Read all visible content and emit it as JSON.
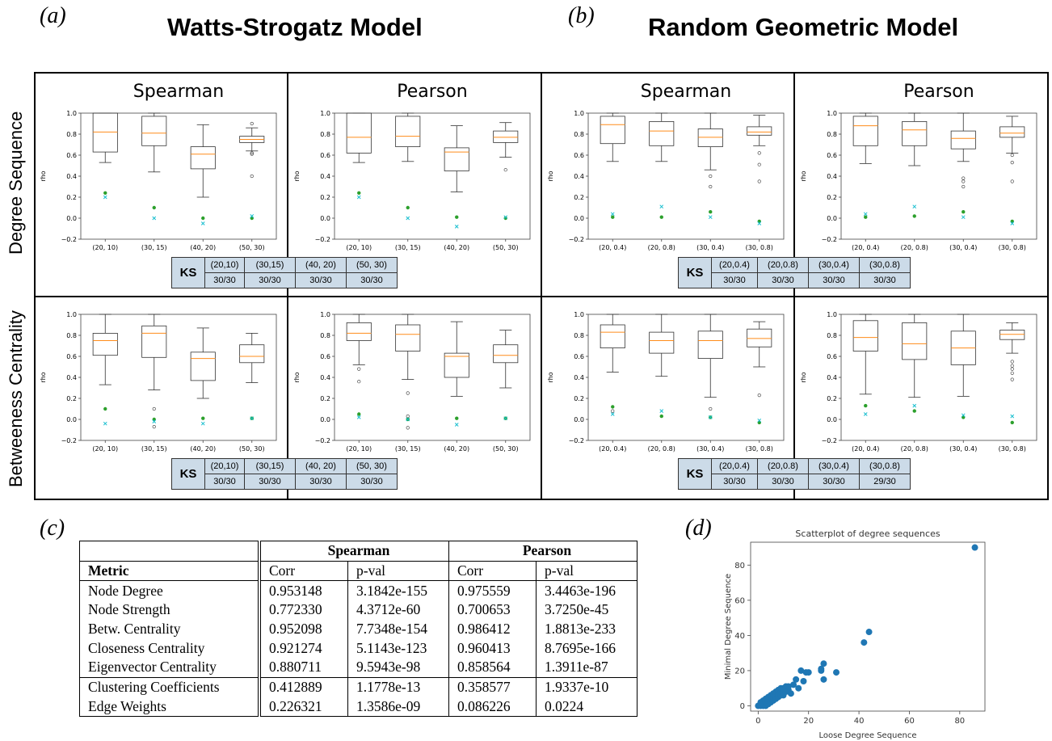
{
  "panel_labels": {
    "a": "(a)",
    "b": "(b)",
    "c": "(c)",
    "d": "(d)"
  },
  "titles": {
    "ws": "Watts-Strogatz Model",
    "rg": "Random Geometric Model"
  },
  "row_labels": {
    "degree": "Degree Sequence",
    "betweenness": "Betweeness Centrality"
  },
  "ks": {
    "label": "KS",
    "ws_deg": {
      "params": [
        "(20,10)",
        "(30,15)",
        "(40, 20)",
        "(50, 30)"
      ],
      "results": [
        "30/30",
        "30/30",
        "30/30",
        "30/30"
      ]
    },
    "rg_deg": {
      "params": [
        "(20,0.4)",
        "(20,0.8)",
        "(30,0.4)",
        "(30,0.8)"
      ],
      "results": [
        "30/30",
        "30/30",
        "30/30",
        "30/30"
      ]
    },
    "ws_bet": {
      "params": [
        "(20,10)",
        "(30,15)",
        "(40, 20)",
        "(50, 30)"
      ],
      "results": [
        "30/30",
        "30/30",
        "30/30",
        "30/30"
      ]
    },
    "rg_bet": {
      "params": [
        "(20,0.4)",
        "(20,0.8)",
        "(30,0.4)",
        "(30,0.8)"
      ],
      "results": [
        "30/30",
        "30/30",
        "30/30",
        "29/30"
      ]
    }
  },
  "table": {
    "group_headers": [
      "Spearman",
      "Pearson"
    ],
    "col_headers": [
      "Metric",
      "Corr",
      "p-val",
      "Corr",
      "p-val"
    ],
    "rows": [
      [
        "Node Degree",
        "0.953148",
        "3.1842e-155",
        "0.975559",
        "3.4463e-196"
      ],
      [
        "Node Strength",
        "0.772330",
        "4.3712e-60",
        "0.700653",
        "3.7250e-45"
      ],
      [
        "Betw. Centrality",
        "0.952098",
        "7.7348e-154",
        "0.986412",
        "1.8813e-233"
      ],
      [
        "Closeness Centrality",
        "0.921274",
        "5.1143e-123",
        "0.960413",
        "8.7695e-166"
      ],
      [
        "Eigenvector Centrality",
        "0.880711",
        "9.5943e-98",
        "0.858564",
        "1.3911e-87"
      ],
      [
        "Clustering Coefficients",
        "0.412889",
        "1.1778e-13",
        "0.358577",
        "1.9337e-10"
      ],
      [
        "Edge Weights",
        "0.226321",
        "1.3586e-09",
        "0.086226",
        "0.0224"
      ]
    ]
  },
  "colors": {
    "median": "#ff8c1a",
    "green_marker": "#2ca02c",
    "cyan_marker": "#17becf",
    "scatter": "#1f77b4",
    "ks_fill": "#ccdbe8"
  },
  "chart_data": [
    {
      "type": "box",
      "title": "Spearman",
      "model": "ws",
      "row": "degree",
      "ylabel": "rho",
      "ylim": [
        -0.2,
        1.0
      ],
      "yticks": [
        "−0.2",
        "0.0",
        "0.2",
        "0.4",
        "0.6",
        "0.8",
        "1.0"
      ],
      "categories": [
        "(20, 10)",
        "(30, 15)",
        "(40, 20)",
        "(50, 30)"
      ],
      "boxes": [
        {
          "min": 0.53,
          "q1": 0.63,
          "med": 0.82,
          "q3": 1.0,
          "max": 1.0,
          "out": []
        },
        {
          "min": 0.44,
          "q1": 0.69,
          "med": 0.81,
          "q3": 0.97,
          "max": 1.0,
          "out": []
        },
        {
          "min": 0.2,
          "q1": 0.47,
          "med": 0.61,
          "q3": 0.68,
          "max": 0.89,
          "out": []
        },
        {
          "min": 0.64,
          "q1": 0.72,
          "med": 0.75,
          "q3": 0.78,
          "max": 0.86,
          "out": [
            0.9,
            0.62,
            0.61,
            0.4
          ]
        }
      ],
      "green": [
        0.24,
        0.1,
        0.0,
        0.0
      ],
      "cyan": [
        0.2,
        0.0,
        -0.05,
        0.02
      ]
    },
    {
      "type": "box",
      "title": "Pearson",
      "model": "ws",
      "row": "degree",
      "ylabel": "rho",
      "ylim": [
        -0.2,
        1.0
      ],
      "yticks": [
        "−0.2",
        "0.0",
        "0.2",
        "0.4",
        "0.6",
        "0.8",
        "1.0"
      ],
      "categories": [
        "(20, 10)",
        "(30, 15)",
        "(40, 20)",
        "(50, 30)"
      ],
      "boxes": [
        {
          "min": 0.53,
          "q1": 0.62,
          "med": 0.77,
          "q3": 1.0,
          "max": 1.0,
          "out": []
        },
        {
          "min": 0.54,
          "q1": 0.68,
          "med": 0.78,
          "q3": 0.97,
          "max": 1.0,
          "out": []
        },
        {
          "min": 0.25,
          "q1": 0.45,
          "med": 0.63,
          "q3": 0.67,
          "max": 0.88,
          "out": []
        },
        {
          "min": 0.58,
          "q1": 0.72,
          "med": 0.77,
          "q3": 0.83,
          "max": 0.91,
          "out": [
            0.46
          ]
        }
      ],
      "green": [
        0.24,
        0.1,
        0.01,
        0.0
      ],
      "cyan": [
        0.2,
        0.0,
        -0.08,
        0.01
      ]
    },
    {
      "type": "box",
      "title": "Spearman",
      "model": "rg",
      "row": "degree",
      "ylabel": "rho",
      "ylim": [
        -0.2,
        1.0
      ],
      "yticks": [
        "−0.2",
        "0.0",
        "0.2",
        "0.4",
        "0.6",
        "0.8",
        "1.0"
      ],
      "categories": [
        "(20, 0.4)",
        "(20, 0.8)",
        "(30, 0.4)",
        "(30, 0.8)"
      ],
      "boxes": [
        {
          "min": 0.54,
          "q1": 0.71,
          "med": 0.89,
          "q3": 0.97,
          "max": 1.0,
          "out": []
        },
        {
          "min": 0.54,
          "q1": 0.69,
          "med": 0.83,
          "q3": 0.92,
          "max": 1.0,
          "out": []
        },
        {
          "min": 0.46,
          "q1": 0.68,
          "med": 0.77,
          "q3": 0.85,
          "max": 1.0,
          "out": [
            0.4,
            0.3
          ]
        },
        {
          "min": 0.69,
          "q1": 0.79,
          "med": 0.82,
          "q3": 0.87,
          "max": 0.98,
          "out": [
            0.62,
            0.51,
            0.35
          ]
        }
      ],
      "green": [
        0.01,
        0.01,
        0.06,
        -0.03
      ],
      "cyan": [
        0.04,
        0.11,
        0.01,
        -0.05
      ]
    },
    {
      "type": "box",
      "title": "Pearson",
      "model": "rg",
      "row": "degree",
      "ylabel": "rho",
      "ylim": [
        -0.2,
        1.0
      ],
      "yticks": [
        "−0.2",
        "0.0",
        "0.2",
        "0.4",
        "0.6",
        "0.8",
        "1.0"
      ],
      "categories": [
        "(20, 0.4)",
        "(20, 0.8)",
        "(30, 0.4)",
        "(30, 0.8)"
      ],
      "boxes": [
        {
          "min": 0.52,
          "q1": 0.69,
          "med": 0.88,
          "q3": 0.97,
          "max": 1.0,
          "out": []
        },
        {
          "min": 0.5,
          "q1": 0.69,
          "med": 0.84,
          "q3": 0.92,
          "max": 1.0,
          "out": []
        },
        {
          "min": 0.54,
          "q1": 0.66,
          "med": 0.76,
          "q3": 0.83,
          "max": 1.0,
          "out": [
            0.38,
            0.35,
            0.3
          ]
        },
        {
          "min": 0.62,
          "q1": 0.77,
          "med": 0.81,
          "q3": 0.87,
          "max": 0.97,
          "out": [
            0.6,
            0.53,
            0.35
          ]
        }
      ],
      "green": [
        0.01,
        0.02,
        0.06,
        -0.03
      ],
      "cyan": [
        0.04,
        0.11,
        0.01,
        -0.05
      ]
    },
    {
      "type": "box",
      "title": "",
      "model": "ws",
      "row": "betweenness",
      "ylabel": "rho",
      "ylim": [
        -0.2,
        1.0
      ],
      "yticks": [
        "−0.2",
        "0.0",
        "0.2",
        "0.4",
        "0.6",
        "0.8",
        "1.0"
      ],
      "categories": [
        "(20, 10)",
        "(30, 15)",
        "(40, 20)",
        "(50, 30)"
      ],
      "boxes": [
        {
          "min": 0.33,
          "q1": 0.61,
          "med": 0.75,
          "q3": 0.82,
          "max": 1.0,
          "out": []
        },
        {
          "min": 0.28,
          "q1": 0.59,
          "med": 0.82,
          "q3": 0.89,
          "max": 1.0,
          "out": [
            0.1,
            -0.07
          ]
        },
        {
          "min": 0.2,
          "q1": 0.37,
          "med": 0.58,
          "q3": 0.64,
          "max": 0.87,
          "out": []
        },
        {
          "min": 0.35,
          "q1": 0.54,
          "med": 0.6,
          "q3": 0.71,
          "max": 0.82,
          "out": []
        }
      ],
      "green": [
        0.1,
        0.0,
        0.01,
        0.01
      ],
      "cyan": [
        -0.04,
        -0.02,
        -0.04,
        0.01
      ]
    },
    {
      "type": "box",
      "title": "",
      "model": "ws",
      "row": "betweenness",
      "ylabel": "rho",
      "ylim": [
        -0.2,
        1.0
      ],
      "yticks": [
        "−0.2",
        "0.0",
        "0.2",
        "0.4",
        "0.6",
        "0.8",
        "1.0"
      ],
      "categories": [
        "(20, 10)",
        "(30, 15)",
        "(40, 20)",
        "(50, 30)"
      ],
      "boxes": [
        {
          "min": 0.52,
          "q1": 0.75,
          "med": 0.82,
          "q3": 0.92,
          "max": 1.0,
          "out": [
            0.48,
            0.36
          ]
        },
        {
          "min": 0.38,
          "q1": 0.65,
          "med": 0.81,
          "q3": 0.9,
          "max": 1.0,
          "out": [
            0.25,
            0.03,
            -0.08
          ]
        },
        {
          "min": 0.22,
          "q1": 0.4,
          "med": 0.6,
          "q3": 0.63,
          "max": 0.93,
          "out": []
        },
        {
          "min": 0.3,
          "q1": 0.54,
          "med": 0.61,
          "q3": 0.71,
          "max": 0.85,
          "out": []
        }
      ],
      "green": [
        0.05,
        0.0,
        0.01,
        0.01
      ],
      "cyan": [
        0.02,
        0.0,
        -0.05,
        0.01
      ]
    },
    {
      "type": "box",
      "title": "",
      "model": "rg",
      "row": "betweenness",
      "ylabel": "rho",
      "ylim": [
        -0.2,
        1.0
      ],
      "yticks": [
        "−0.2",
        "0.0",
        "0.2",
        "0.4",
        "0.6",
        "0.8",
        "1.0"
      ],
      "categories": [
        "(20, 0.4)",
        "(20, 0.8)",
        "(30, 0.4)",
        "(30, 0.8)"
      ],
      "boxes": [
        {
          "min": 0.45,
          "q1": 0.68,
          "med": 0.83,
          "q3": 0.9,
          "max": 1.0,
          "out": [
            0.08
          ]
        },
        {
          "min": 0.41,
          "q1": 0.63,
          "med": 0.75,
          "q3": 0.83,
          "max": 1.0,
          "out": []
        },
        {
          "min": 0.21,
          "q1": 0.58,
          "med": 0.75,
          "q3": 0.84,
          "max": 1.0,
          "out": [
            0.1
          ]
        },
        {
          "min": 0.5,
          "q1": 0.69,
          "med": 0.77,
          "q3": 0.86,
          "max": 0.93,
          "out": [
            0.23
          ]
        }
      ],
      "green": [
        0.12,
        0.03,
        0.02,
        -0.03
      ],
      "cyan": [
        0.05,
        0.08,
        0.02,
        -0.01
      ]
    },
    {
      "type": "box",
      "title": "",
      "model": "rg",
      "row": "betweenness",
      "ylabel": "rho",
      "ylim": [
        -0.2,
        1.0
      ],
      "yticks": [
        "−0.2",
        "0.0",
        "0.2",
        "0.4",
        "0.6",
        "0.8",
        "1.0"
      ],
      "categories": [
        "(20, 0.4)",
        "(20, 0.8)",
        "(30, 0.4)",
        "(30, 0.8)"
      ],
      "boxes": [
        {
          "min": 0.24,
          "q1": 0.65,
          "med": 0.78,
          "q3": 0.94,
          "max": 1.0,
          "out": []
        },
        {
          "min": 0.21,
          "q1": 0.57,
          "med": 0.72,
          "q3": 0.92,
          "max": 1.0,
          "out": []
        },
        {
          "min": 0.22,
          "q1": 0.52,
          "med": 0.68,
          "q3": 0.84,
          "max": 1.0,
          "out": []
        },
        {
          "min": 0.63,
          "q1": 0.76,
          "med": 0.81,
          "q3": 0.85,
          "max": 0.92,
          "out": [
            0.55,
            0.51,
            0.48,
            0.44,
            0.38
          ]
        }
      ],
      "green": [
        0.13,
        0.08,
        0.02,
        -0.03
      ],
      "cyan": [
        0.05,
        0.13,
        0.04,
        0.03
      ]
    },
    {
      "type": "scatter",
      "title": "Scatterplot of degree sequences",
      "xlabel": "Loose Degree Sequence",
      "ylabel": "Minimal Degree Sequence",
      "xlim": [
        -3,
        90
      ],
      "ylim": [
        -3,
        93
      ],
      "xticks": [
        0,
        20,
        40,
        60,
        80
      ],
      "yticks": [
        0,
        20,
        40,
        60,
        80
      ],
      "x": [
        0,
        1,
        1,
        2,
        2,
        2,
        3,
        3,
        3,
        3,
        4,
        4,
        4,
        4,
        5,
        5,
        5,
        5,
        6,
        6,
        6,
        6,
        7,
        7,
        7,
        7,
        8,
        8,
        8,
        8,
        9,
        9,
        9,
        10,
        10,
        10,
        11,
        11,
        12,
        12,
        13,
        14,
        15,
        16,
        17,
        18,
        19,
        20,
        25,
        25,
        26,
        26,
        31,
        42,
        44,
        86
      ],
      "y": [
        0,
        0,
        2,
        0,
        1,
        3,
        0,
        2,
        3,
        4,
        1,
        3,
        4,
        5,
        2,
        4,
        5,
        6,
        3,
        5,
        6,
        7,
        4,
        6,
        7,
        8,
        5,
        7,
        8,
        9,
        6,
        8,
        10,
        6,
        9,
        10,
        8,
        11,
        9,
        11,
        7,
        12,
        15,
        10,
        20,
        14,
        19,
        19,
        20,
        21,
        24,
        15,
        19,
        36,
        42,
        90
      ]
    }
  ]
}
